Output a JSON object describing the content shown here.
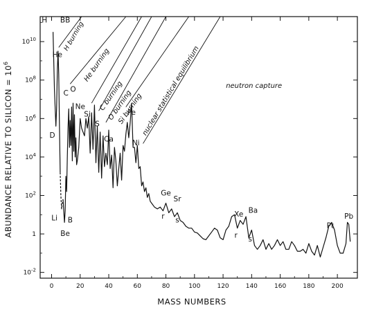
{
  "chart_data": {
    "type": "line",
    "xlabel": "MASS   NUMBERS",
    "ylabel": "ABUNDANCE RELATIVE TO SILICON = 10",
    "ylabel_superscript": "6",
    "xlim": [
      -8,
      214
    ],
    "ylim_log10": [
      -2.3,
      11.3
    ],
    "y_scale": "log",
    "grid": false,
    "x_ticks": [
      "0",
      "20",
      "40",
      "60",
      "80",
      "100",
      "120",
      "140",
      "160",
      "180",
      "200"
    ],
    "y_ticks": [
      {
        "base": "10",
        "exp": "10",
        "val": 10
      },
      {
        "base": "10",
        "exp": "8",
        "val": 8
      },
      {
        "base": "10",
        "exp": "6",
        "val": 6
      },
      {
        "base": "10",
        "exp": "4",
        "val": 4
      },
      {
        "base": "10",
        "exp": "2",
        "val": 2
      },
      {
        "base": "1",
        "exp": "",
        "val": 0
      },
      {
        "base": "10",
        "exp": "-2",
        "val": -2
      }
    ],
    "series": [
      {
        "style": "solid",
        "x": [
          1,
          1.5,
          2,
          2.5,
          3,
          3.5,
          4,
          4.5,
          5,
          5.5,
          6
        ],
        "y_log10": [
          10.5,
          9,
          7.5,
          6.5,
          5.6,
          6.5,
          8.5,
          9.5,
          8.3,
          5.5,
          3.2
        ]
      },
      {
        "style": "dashed",
        "x": [
          6,
          6.5,
          7,
          7.5,
          8
        ],
        "y_log10": [
          3.2,
          2,
          1.3,
          1.6,
          1.8
        ]
      },
      {
        "style": "solid",
        "x": [
          8,
          9,
          9.5,
          10,
          10.5,
          11,
          11.5,
          12,
          12.5,
          13,
          13.5,
          14,
          14.5,
          15,
          15.5,
          16,
          16.5,
          17,
          17.5,
          18,
          19,
          20,
          21,
          22,
          23,
          24,
          25,
          26,
          27,
          28,
          29,
          30,
          31,
          32,
          33,
          34,
          35,
          36,
          37,
          38,
          39,
          40,
          41,
          42,
          43,
          44,
          45,
          46,
          47,
          48,
          49,
          50,
          51,
          52,
          53,
          54,
          55,
          56,
          57,
          58,
          59,
          60,
          61,
          62,
          63,
          64,
          65,
          66,
          67,
          68,
          69,
          70,
          72,
          74,
          76,
          78,
          80,
          82,
          84,
          86,
          88,
          90,
          92,
          94,
          96,
          98,
          100,
          102,
          104,
          106,
          108,
          110,
          112,
          114,
          116,
          118,
          120,
          122,
          124,
          126,
          128,
          130,
          132,
          134,
          136,
          138,
          140,
          142,
          144,
          146,
          148,
          150,
          152,
          154,
          156,
          158,
          160,
          162,
          164,
          166,
          168,
          170,
          172,
          174,
          176,
          178,
          180,
          182,
          184,
          186,
          188,
          190,
          192,
          194,
          196,
          198,
          200,
          202,
          204,
          206,
          207,
          208,
          209
        ],
        "y_log10": [
          1.8,
          0.6,
          1.2,
          3,
          2.2,
          4,
          5.5,
          6.5,
          4.5,
          5.9,
          4.6,
          6.6,
          3.8,
          6.8,
          4.3,
          6.2,
          4,
          5,
          3.6,
          3.8,
          4.5,
          6,
          5.5,
          5.3,
          5.1,
          6,
          5.5,
          6.1,
          4.2,
          6.3,
          4.4,
          6.7,
          3.7,
          5.6,
          3.2,
          5.3,
          2.9,
          5.1,
          3.5,
          4.2,
          3.6,
          5.4,
          3.4,
          4.1,
          2.4,
          4.5,
          3.8,
          2.5,
          3.4,
          4.2,
          2.8,
          4.6,
          4.3,
          5.2,
          5.8,
          5,
          5.8,
          6.8,
          4.5,
          4.5,
          3.7,
          4.6,
          3.4,
          3.5,
          2.5,
          2.7,
          2.2,
          2.4,
          1.9,
          2.1,
          1.7,
          1.6,
          1.4,
          1.3,
          1.4,
          1.2,
          1.6,
          1.1,
          1.3,
          0.9,
          1.1,
          0.7,
          0.6,
          0.4,
          0.3,
          0.3,
          0.1,
          0.05,
          -0.1,
          -0.25,
          -0.3,
          -0.1,
          0.1,
          0.3,
          0.2,
          -0.2,
          -0.3,
          0.2,
          0.4,
          0.9,
          1,
          0.3,
          0.7,
          0.5,
          0.9,
          -0.2,
          0.2,
          -0.6,
          -0.8,
          -0.6,
          -0.3,
          -0.8,
          -0.5,
          -0.8,
          -0.6,
          -0.3,
          -0.6,
          -0.4,
          -0.8,
          -0.8,
          -0.4,
          -0.6,
          -0.9,
          -0.9,
          -0.8,
          -1,
          -0.5,
          -0.9,
          -1.1,
          -0.6,
          -1.2,
          -0.7,
          -0.2,
          0.4,
          0.6,
          0.2,
          -0.6,
          -1,
          -1,
          -0.5,
          0.6,
          0.5,
          -0.4
        ]
      }
    ],
    "element_labels": [
      {
        "text": "H",
        "x": -5,
        "y": 11.0
      },
      {
        "text": "He",
        "x": 4,
        "y": 9.2
      },
      {
        "text": "D",
        "x": 0.5,
        "y": 5.0
      },
      {
        "text": "Li",
        "x": 2,
        "y": 0.7
      },
      {
        "text": "B",
        "x": 13,
        "y": 0.6
      },
      {
        "text": "Be",
        "x": 9.5,
        "y": -0.1
      },
      {
        "text": "C",
        "x": 10,
        "y": 7.2
      },
      {
        "text": "O",
        "x": 15,
        "y": 7.4
      },
      {
        "text": "Ne",
        "x": 20,
        "y": 6.5
      },
      {
        "text": "Si",
        "x": 25,
        "y": 6.1
      },
      {
        "text": "S",
        "x": 32,
        "y": 5.6
      },
      {
        "text": "Ca",
        "x": 40,
        "y": 4.8
      },
      {
        "text": "Fe",
        "x": 56,
        "y": 6.2
      },
      {
        "text": "Ni",
        "x": 59,
        "y": 4.6
      },
      {
        "text": "Ge",
        "x": 80,
        "y": 2.0
      },
      {
        "text": "Sr",
        "x": 88,
        "y": 1.7
      },
      {
        "text": "r",
        "x": 78,
        "y": 0.8
      },
      {
        "text": "s",
        "x": 88,
        "y": 0.6
      },
      {
        "text": "Xe",
        "x": 131,
        "y": 0.9
      },
      {
        "text": "Ba",
        "x": 141,
        "y": 1.1
      },
      {
        "text": "r",
        "x": 129,
        "y": -0.2
      },
      {
        "text": "s",
        "x": 139,
        "y": -0.4
      },
      {
        "text": "Pt",
        "x": 195,
        "y": 0.3
      },
      {
        "text": "Pb",
        "x": 208,
        "y": 0.8
      }
    ],
    "bb_label": {
      "text": "BB",
      "x": 9.5,
      "y": 11.0
    },
    "process_labels": [
      {
        "text": "H burning",
        "x": 11,
        "y": 9.5,
        "rot": -60,
        "cls": "proc-small"
      },
      {
        "text": "He burning",
        "x": 25,
        "y": 7.9,
        "rot": -55,
        "cls": "process"
      },
      {
        "text": "C burning",
        "x": 36,
        "y": 6.4,
        "rot": -55,
        "cls": "process"
      },
      {
        "text": "O burning",
        "x": 42,
        "y": 5.9,
        "rot": -55,
        "cls": "process"
      },
      {
        "text": "Si burning",
        "x": 49,
        "y": 5.7,
        "rot": -55,
        "cls": "process"
      },
      {
        "text": "nuclear statistical equilibrium",
        "x": 66,
        "y": 5.1,
        "rot": -59,
        "cls": "process"
      },
      {
        "text": "neutron capture",
        "x": 122,
        "y": 7.6,
        "rot": 0,
        "cls": "process"
      }
    ],
    "diagonal_lines": [
      {
        "x1": 5,
        "y1": 9.7,
        "x2": 21,
        "y2": 11.3
      },
      {
        "x1": 13,
        "y1": 7.8,
        "x2": 52,
        "y2": 11.3
      },
      {
        "x1": 28,
        "y1": 6.8,
        "x2": 63,
        "y2": 11.3
      },
      {
        "x1": 33,
        "y1": 6.4,
        "x2": 70,
        "y2": 11.3
      },
      {
        "x1": 38,
        "y1": 5.8,
        "x2": 80,
        "y2": 11.3
      },
      {
        "x1": 52,
        "y1": 6.6,
        "x2": 96,
        "y2": 11.3
      },
      {
        "x1": 64,
        "y1": 4.7,
        "x2": 118,
        "y2": 11.3
      }
    ]
  }
}
